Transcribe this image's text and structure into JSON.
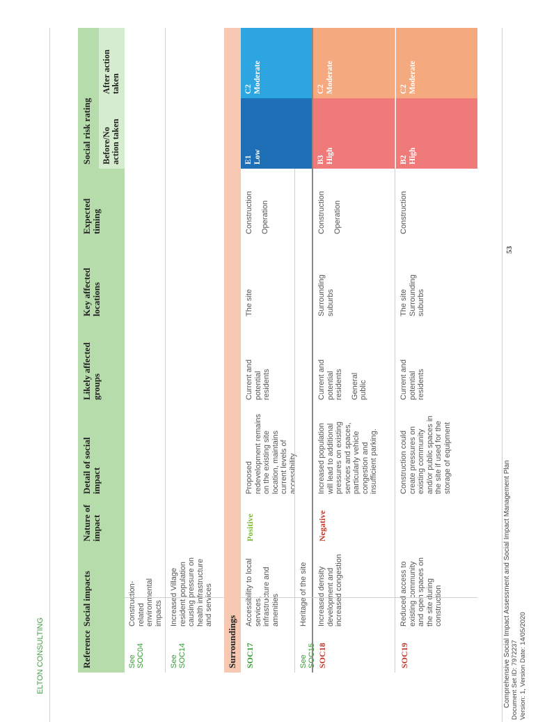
{
  "header": {
    "company": "ELTON CONSULTING"
  },
  "table": {
    "columns": {
      "reference": "Reference",
      "social_impacts": "Social impacts",
      "nature": "Nature of impact",
      "detail": "Detail of social impact",
      "groups": "Likely affected groups",
      "locations": "Key affected locations",
      "timing": "Expected timing",
      "risk": "Social risk rating",
      "before": "Before/No action taken",
      "after": "After action taken"
    },
    "rows": {
      "soc04": {
        "ref": "See SOC04",
        "impact": "Construction-related environmental impacts"
      },
      "soc14": {
        "ref": "See SOC14",
        "impact": "Increased Village resident population causing pressure on health infrastructure and services"
      },
      "section": {
        "label": "Surroundings"
      },
      "soc17": {
        "ref": "SOC17",
        "impact": "Accessibility to local services, infrastructure and amenities",
        "nature": "Positive",
        "detail": "Proposed redevelopment remains on the existing site location, maintains current levels of accessibility",
        "groups": "Current and potential residents",
        "locations": "The site",
        "timing1": "Construction",
        "timing2": "Operation",
        "before_code": "E1",
        "before_level": "Low",
        "after_code": "C2",
        "after_level": "Moderate"
      },
      "soc15": {
        "ref": "See SOC15",
        "impact": "Heritage of the site"
      },
      "soc18": {
        "ref": "SOC18",
        "impact": "Increased density development and increased congestion",
        "nature": "Negative",
        "detail": "Increased population will lead to additional pressures on existing services and spaces, particularly vehicle congestion and insufficient parking.",
        "groups1": "Current and potential residents",
        "groups2": "General public",
        "locations": "Surrounding suburbs",
        "timing1": "Construction",
        "timing2": "Operation",
        "before_code": "B3",
        "before_level": "High",
        "after_code": "C2",
        "after_level": "Moderate"
      },
      "soc19": {
        "ref": "SOC19",
        "impact": "Reduced access to existing community and open spaces on the site during construction",
        "nature": "",
        "detail": "Construction could create pressures on existing community and/or public spaces in the site if used for the storage of equipment",
        "groups": "Current and potential residents",
        "locations1": "The site",
        "locations2": "Surrounding suburbs",
        "timing1": "Construction",
        "before_code": "B2",
        "before_level": "High",
        "after_code": "C2",
        "after_level": "Moderate"
      }
    }
  },
  "footer": {
    "title": "Comprehensive Social Impact Assessment and Social Impact Management Plan",
    "doc_set": "Document Set ID: 7972237",
    "version": "Version: 1, Version Date: 14/05/2020",
    "page_number": "53"
  },
  "colors": {
    "header_green": "#b5dcaa",
    "subheader_green": "#d6ecce",
    "surroundings_band": "#f7c8b2",
    "low_blue": "#1e6fb5",
    "moderate_cyan": "#2ca5e0",
    "high_red": "#f07a7a",
    "moderate_orange": "#f5a97e"
  }
}
